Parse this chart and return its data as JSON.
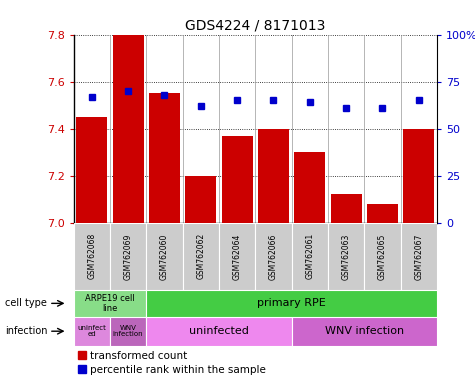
{
  "title": "GDS4224 / 8171013",
  "samples": [
    "GSM762068",
    "GSM762069",
    "GSM762060",
    "GSM762062",
    "GSM762064",
    "GSM762066",
    "GSM762061",
    "GSM762063",
    "GSM762065",
    "GSM762067"
  ],
  "transformed_count": [
    7.45,
    7.8,
    7.55,
    7.2,
    7.37,
    7.4,
    7.3,
    7.12,
    7.08,
    7.4
  ],
  "percentile_rank": [
    67,
    70,
    68,
    62,
    65,
    65,
    64,
    61,
    61,
    65
  ],
  "ylim_left": [
    7.0,
    7.8
  ],
  "ylim_right": [
    0,
    100
  ],
  "yticks_left": [
    7.0,
    7.2,
    7.4,
    7.6,
    7.8
  ],
  "yticks_right": [
    0,
    25,
    50,
    75,
    100
  ],
  "ytick_labels_right": [
    "0",
    "25",
    "50",
    "75",
    "100%"
  ],
  "bar_color": "#cc0000",
  "dot_color": "#0000cc",
  "cell_type_arpe_color": "#88dd88",
  "cell_type_primary_color": "#44cc44",
  "infection_uninfected_arpe_color": "#dd88dd",
  "infection_wnv_arpe_color": "#bb66bb",
  "infection_uninfected_color": "#ee88ee",
  "infection_wnv_color": "#cc66cc",
  "sample_box_color": "#cccccc",
  "legend_labels": [
    "transformed count",
    "percentile rank within the sample"
  ],
  "bar_width": 0.85
}
